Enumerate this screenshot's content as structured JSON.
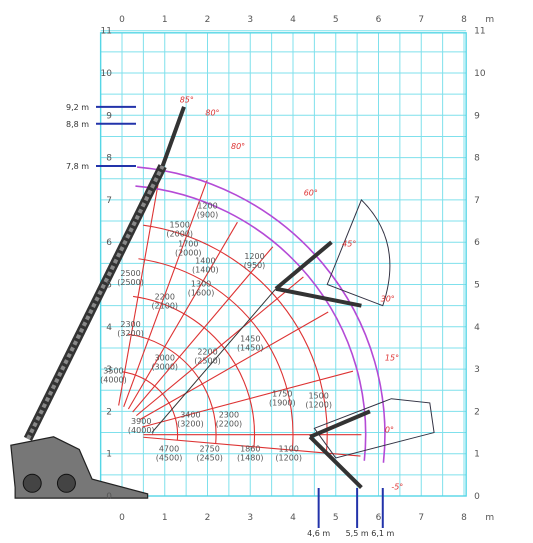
{
  "chart_data": {
    "type": "diagram",
    "title": "",
    "x_axis": {
      "unit": "m",
      "ticks": [
        "0",
        "1",
        "2",
        "3",
        "4",
        "5",
        "6",
        "7",
        "8"
      ]
    },
    "y_axis": {
      "ticks": [
        "0",
        "1",
        "2",
        "3",
        "4",
        "5",
        "6",
        "7",
        "8",
        "9",
        "10",
        "11"
      ]
    },
    "height_markers": [
      {
        "label": "9,2 m",
        "value": 9.2
      },
      {
        "label": "8,8 m",
        "value": 8.8
      },
      {
        "label": "7,8 m",
        "value": 7.8
      }
    ],
    "reach_markers": [
      {
        "label": "4,6 m",
        "value": 4.6
      },
      {
        "label": "5,5 m",
        "value": 5.5
      },
      {
        "label": "6,1 m",
        "value": 6.1
      }
    ],
    "angle_labels": [
      {
        "text": "85°",
        "x": 1.35,
        "y": 9.3
      },
      {
        "text": "80°",
        "x": 1.95,
        "y": 9.0
      },
      {
        "text": "80°",
        "x": 2.55,
        "y": 8.2
      },
      {
        "text": "60°",
        "x": 4.25,
        "y": 7.1
      },
      {
        "text": "45°",
        "x": 5.15,
        "y": 5.9
      },
      {
        "text": "30°",
        "x": 6.05,
        "y": 4.6
      },
      {
        "text": "15°",
        "x": 6.15,
        "y": 3.2
      },
      {
        "text": "0°",
        "x": 6.15,
        "y": 1.5
      },
      {
        "text": "-5°",
        "x": 6.3,
        "y": 0.15
      }
    ],
    "load_labels": [
      {
        "top": "1500",
        "bottom": "(2000)",
        "x": 1.35,
        "y": 6.35
      },
      {
        "top": "1200",
        "bottom": "(900)",
        "x": 2.0,
        "y": 6.8
      },
      {
        "top": "1700",
        "bottom": "(2000)",
        "x": 1.55,
        "y": 5.9
      },
      {
        "top": "1400",
        "bottom": "(1400)",
        "x": 1.95,
        "y": 5.5
      },
      {
        "top": "1200",
        "bottom": "(950)",
        "x": 3.1,
        "y": 5.6
      },
      {
        "top": "2500",
        "bottom": "(2500)",
        "x": 0.2,
        "y": 5.2
      },
      {
        "top": "1300",
        "bottom": "(1600)",
        "x": 1.85,
        "y": 4.95
      },
      {
        "top": "2200",
        "bottom": "(2100)",
        "x": 1.0,
        "y": 4.65
      },
      {
        "top": "2300",
        "bottom": "(3200)",
        "x": 0.2,
        "y": 4.0
      },
      {
        "top": "1450",
        "bottom": "(1450)",
        "x": 3.0,
        "y": 3.65
      },
      {
        "top": "2200",
        "bottom": "(2500)",
        "x": 2.0,
        "y": 3.35
      },
      {
        "top": "3000",
        "bottom": "(3000)",
        "x": 1.0,
        "y": 3.2
      },
      {
        "top": "3500",
        "bottom": "(4000)",
        "x": -0.2,
        "y": 2.9
      },
      {
        "top": "1750",
        "bottom": "(1900)",
        "x": 3.75,
        "y": 2.35
      },
      {
        "top": "1500",
        "bottom": "(1200)",
        "x": 4.6,
        "y": 2.3
      },
      {
        "top": "2300",
        "bottom": "(2200)",
        "x": 2.5,
        "y": 1.85
      },
      {
        "top": "3400",
        "bottom": "(3200)",
        "x": 1.6,
        "y": 1.85
      },
      {
        "top": "3900",
        "bottom": "(4000)",
        "x": 0.45,
        "y": 1.7
      },
      {
        "top": "4700",
        "bottom": "(4500)",
        "x": 1.1,
        "y": 1.05
      },
      {
        "top": "2750",
        "bottom": "(2450)",
        "x": 2.05,
        "y": 1.05
      },
      {
        "top": "1860",
        "bottom": "(1480)",
        "x": 3.0,
        "y": 1.05
      },
      {
        "top": "1100",
        "bottom": "(1200)",
        "x": 3.9,
        "y": 1.05
      }
    ]
  }
}
